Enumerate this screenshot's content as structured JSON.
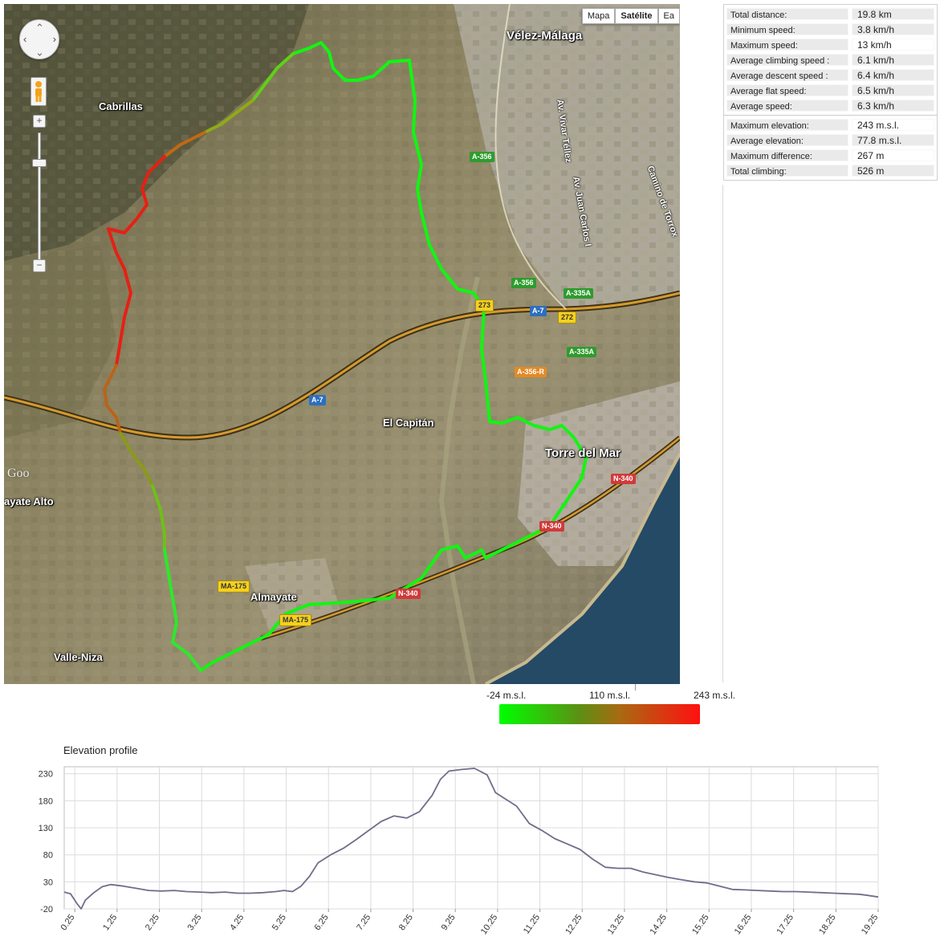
{
  "map": {
    "map_type_buttons": [
      {
        "label": "Mapa",
        "active": false
      },
      {
        "label": "Satélite",
        "active": true
      },
      {
        "label": "Ea",
        "active": false
      }
    ],
    "zoom_in_label": "+",
    "zoom_out_label": "−",
    "watermark": "Goo",
    "places": [
      {
        "name": "Vélez-Málaga",
        "big": true
      },
      {
        "name": "Cabrillas",
        "big": false
      },
      {
        "name": "El Capitán",
        "big": false
      },
      {
        "name": "Torre del Mar",
        "big": true
      },
      {
        "name": "Almayate",
        "big": false
      },
      {
        "name": "Valle-Niza",
        "big": false
      },
      {
        "name": "ayate Alto",
        "big": false
      }
    ],
    "road_names": [
      "Av. Vivar Téllez",
      "Av. Juan Carlos I",
      "Camino de Torrox"
    ],
    "road_badges": [
      {
        "label": "A-356",
        "color": "green"
      },
      {
        "label": "A-356",
        "color": "green"
      },
      {
        "label": "A-335A",
        "color": "green"
      },
      {
        "label": "A-335A",
        "color": "green"
      },
      {
        "label": "A-7",
        "color": "blue"
      },
      {
        "label": "A-7",
        "color": "blue"
      },
      {
        "label": "272",
        "color": "yellow"
      },
      {
        "label": "273",
        "color": "yellow"
      },
      {
        "label": "A-356-R",
        "color": "orange"
      },
      {
        "label": "N-340",
        "color": "red"
      },
      {
        "label": "N-340",
        "color": "red"
      },
      {
        "label": "N-340",
        "color": "red"
      },
      {
        "label": "MA-175",
        "color": "yellow"
      },
      {
        "label": "MA-175",
        "color": "yellow"
      }
    ],
    "route_color_start": "#00ff00",
    "route_color_end": "#ff1010"
  },
  "stats": {
    "speed_group": [
      {
        "label": "Total distance:",
        "value": "19.8 km"
      },
      {
        "label": "Minimum speed:",
        "value": "3.8 km/h"
      },
      {
        "label": "Maximum speed:",
        "value": "13 km/h"
      },
      {
        "label": "Average climbing speed :",
        "value": "6.1 km/h"
      },
      {
        "label": "Average descent speed :",
        "value": "6.4 km/h"
      },
      {
        "label": "Average flat speed:",
        "value": "6.5 km/h"
      },
      {
        "label": "Average speed:",
        "value": "6.3 km/h"
      }
    ],
    "elevation_group": [
      {
        "label": "Maximum elevation:",
        "value": "243 m.s.l."
      },
      {
        "label": "Average elevation:",
        "value": "77.8 m.s.l."
      },
      {
        "label": "Maximum difference:",
        "value": "267 m"
      },
      {
        "label": "Total climbing:",
        "value": "526 m"
      }
    ]
  },
  "legend": {
    "min_label": "-24 m.s.l.",
    "mid_label": "110 m.s.l.",
    "max_label": "243 m.s.l.",
    "gradient": [
      "#00ff00",
      "#5d8f14",
      "#a96a12",
      "#ff1010"
    ]
  },
  "chart_data": {
    "type": "line",
    "title": "Elevation profile",
    "xlabel": "",
    "ylabel": "",
    "xlim": [
      0,
      19.25
    ],
    "ylim": [
      -20,
      243
    ],
    "y_ticks": [
      -20,
      30,
      80,
      130,
      180,
      230
    ],
    "x_ticks": [
      "0.25",
      "1.25",
      "2.25",
      "3.25",
      "4.25",
      "5.25",
      "6.25",
      "7.25",
      "8.25",
      "9.25",
      "10.25",
      "11.25",
      "12.25",
      "13.25",
      "14.25",
      "15.25",
      "16.25",
      "17.25",
      "18.25",
      "19.25"
    ],
    "grid": true,
    "line_color": "#6e6e8c",
    "x": [
      0,
      0.15,
      0.3,
      0.4,
      0.5,
      0.7,
      0.9,
      1.1,
      1.4,
      1.7,
      2.0,
      2.3,
      2.6,
      2.9,
      3.2,
      3.5,
      3.8,
      4.1,
      4.4,
      4.7,
      5.0,
      5.2,
      5.4,
      5.6,
      5.8,
      6.0,
      6.3,
      6.6,
      6.9,
      7.2,
      7.5,
      7.8,
      8.1,
      8.4,
      8.7,
      8.9,
      9.1,
      9.4,
      9.7,
      10.0,
      10.2,
      10.4,
      10.7,
      11.0,
      11.3,
      11.6,
      11.9,
      12.2,
      12.5,
      12.8,
      13.1,
      13.4,
      13.7,
      14.0,
      14.3,
      14.6,
      14.9,
      15.2,
      15.5,
      15.8,
      16.1,
      16.4,
      16.7,
      17.0,
      17.3,
      17.6,
      17.9,
      18.2,
      18.5,
      18.8,
      19.0,
      19.25
    ],
    "values": [
      11,
      8,
      -10,
      -20,
      -4,
      10,
      21,
      25,
      22,
      18,
      14,
      13,
      14,
      12,
      11,
      10,
      11,
      9,
      9,
      10,
      12,
      14,
      12,
      22,
      40,
      65,
      80,
      92,
      108,
      125,
      142,
      152,
      148,
      160,
      190,
      220,
      235,
      238,
      240,
      228,
      195,
      185,
      170,
      138,
      125,
      110,
      100,
      90,
      72,
      57,
      55,
      55,
      48,
      43,
      38,
      34,
      30,
      28,
      22,
      16,
      15,
      14,
      13,
      12,
      12,
      11,
      10,
      9,
      8,
      7,
      5,
      2
    ]
  }
}
